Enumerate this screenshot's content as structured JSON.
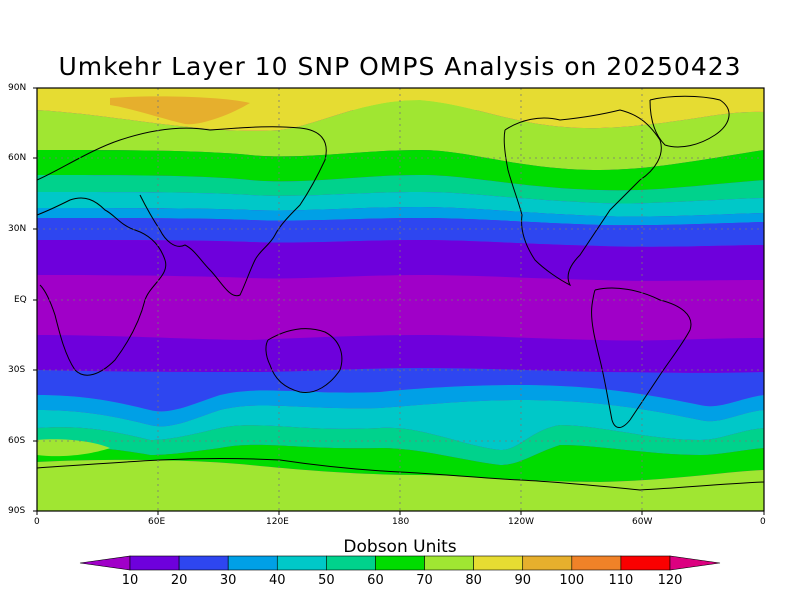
{
  "title": "Umkehr Layer 10 SNP OMPS Analysis on 20250423",
  "map": {
    "lat_ticks": [
      "90N",
      "60N",
      "30N",
      "EQ",
      "30S",
      "60S",
      "90S"
    ],
    "lon_ticks": [
      "0",
      "60E",
      "120E",
      "180",
      "120W",
      "60W",
      "0"
    ]
  },
  "colorbar": {
    "title": "Dobson Units",
    "levels": [
      "10",
      "20",
      "30",
      "40",
      "50",
      "60",
      "70",
      "80",
      "90",
      "100",
      "110",
      "120"
    ],
    "colors": [
      "#a000c8",
      "#6e00dc",
      "#2e46f0",
      "#00a0e6",
      "#00c8c8",
      "#00d28c",
      "#00dc00",
      "#a0e632",
      "#e6dc32",
      "#e6af2d",
      "#f08228",
      "#fa0000",
      "#dc0080"
    ]
  },
  "chart_data": {
    "type": "heatmap",
    "title": "Umkehr Layer 10 SNP OMPS Analysis on 20250423",
    "units": "Dobson Units",
    "x_range": [
      "0",
      "0"
    ],
    "y_range": [
      "90S",
      "90N"
    ],
    "bands_by_latitude_approx": [
      {
        "lat": 90,
        "value": 90
      },
      {
        "lat": 75,
        "value": 90
      },
      {
        "lat": 60,
        "value": 70
      },
      {
        "lat": 45,
        "value": 50
      },
      {
        "lat": 30,
        "value": 20
      },
      {
        "lat": 15,
        "value": 10
      },
      {
        "lat": 0,
        "value": 5
      },
      {
        "lat": -15,
        "value": 10
      },
      {
        "lat": -30,
        "value": 20
      },
      {
        "lat": -45,
        "value": 40
      },
      {
        "lat": -60,
        "value": 60
      },
      {
        "lat": -75,
        "value": 75
      },
      {
        "lat": -90,
        "value": 80
      }
    ]
  }
}
